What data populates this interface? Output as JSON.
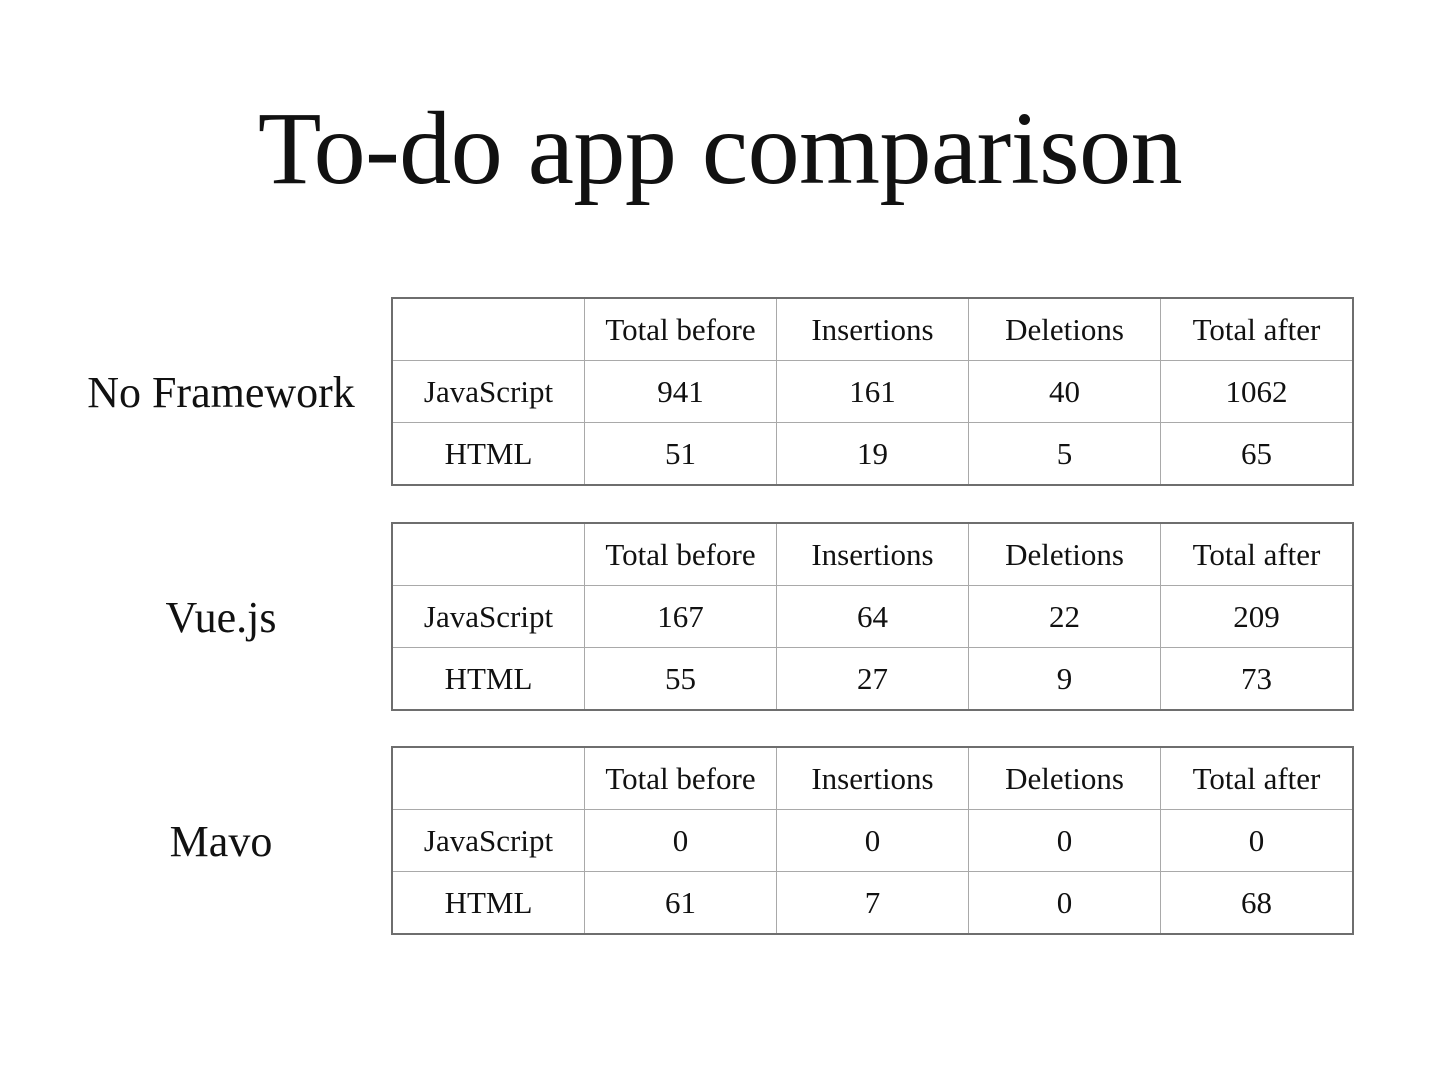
{
  "title": "To-do app comparison",
  "columns": [
    "",
    "Total before",
    "Insertions",
    "Deletions",
    "Total after"
  ],
  "groups": [
    {
      "label": "No Framework",
      "rows": [
        {
          "name": "JavaScript",
          "cells": [
            "941",
            "161",
            "40",
            "1062"
          ]
        },
        {
          "name": "HTML",
          "cells": [
            "51",
            "19",
            "5",
            "65"
          ]
        }
      ]
    },
    {
      "label": "Vue.js",
      "rows": [
        {
          "name": "JavaScript",
          "cells": [
            "167",
            "64",
            "22",
            "209"
          ]
        },
        {
          "name": "HTML",
          "cells": [
            "55",
            "27",
            "9",
            "73"
          ]
        }
      ]
    },
    {
      "label": "Mavo",
      "rows": [
        {
          "name": "JavaScript",
          "cells": [
            "0",
            "0",
            "0",
            "0"
          ]
        },
        {
          "name": "HTML",
          "cells": [
            "61",
            "7",
            "0",
            "68"
          ]
        }
      ]
    }
  ]
}
